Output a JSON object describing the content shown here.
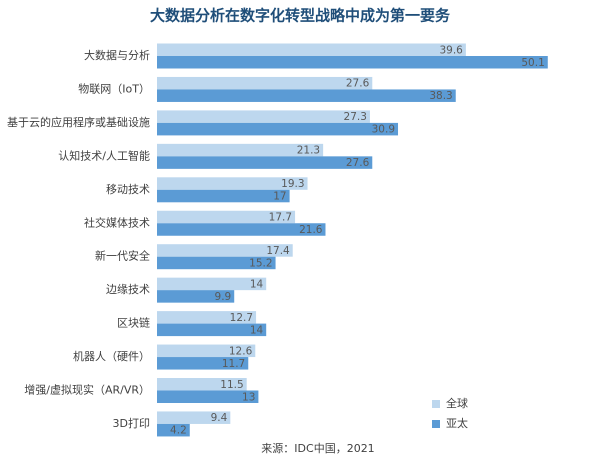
{
  "chart_data": {
    "type": "barh",
    "title": "大数据分析在数字化转型战略中成为第一要务",
    "source": "来源：IDC中国，2021",
    "categories": [
      "大数据与分析",
      "物联网（IoT）",
      "基于云的应用程序或基础设施",
      "认知技术/人工智能",
      "移动技术",
      "社交媒体技术",
      "新一代安全",
      "边缘技术",
      "区块链",
      "机器人（硬件）",
      "增强/虚拟现实（AR/VR）",
      "3D打印"
    ],
    "series": [
      {
        "name": "全球",
        "color": "#bdd7ee",
        "values": [
          39.6,
          27.6,
          27.3,
          21.3,
          19.3,
          17.7,
          17.4,
          14,
          12.7,
          12.6,
          11.5,
          9.4
        ]
      },
      {
        "name": "亚太",
        "color": "#5b9bd5",
        "values": [
          50.1,
          38.3,
          30.9,
          27.6,
          17,
          21.6,
          15.2,
          9.9,
          14,
          11.7,
          13,
          4.2
        ]
      }
    ]
  }
}
